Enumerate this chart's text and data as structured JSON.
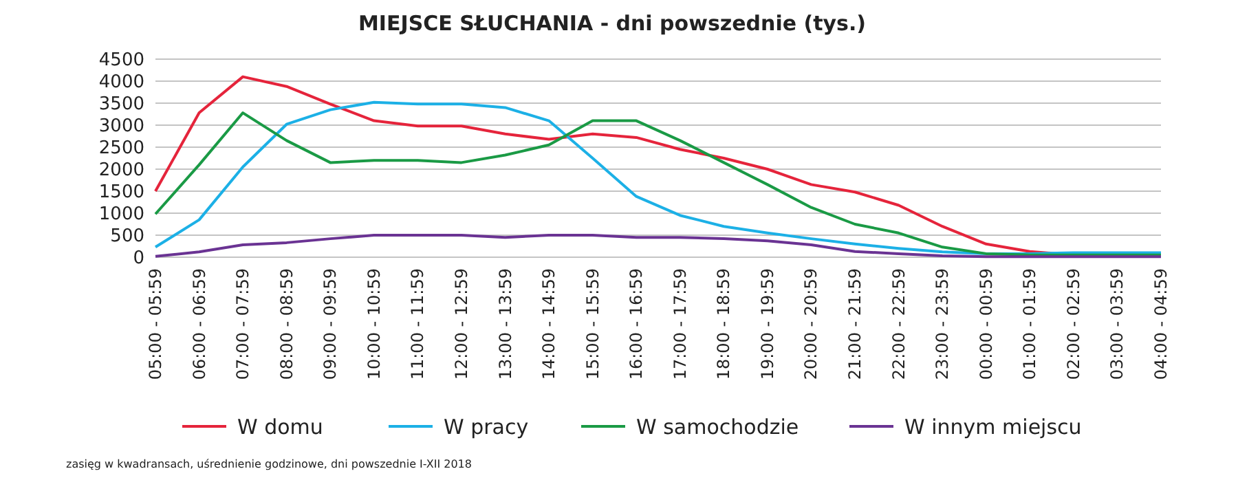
{
  "chart_data": {
    "type": "line",
    "title": "MIEJSCE SŁUCHANIA - dni powszednie (tys.)",
    "categories": [
      "05:00 - 05:59",
      "06:00 - 06:59",
      "07:00 - 07:59",
      "08:00 - 08:59",
      "09:00 - 09:59",
      "10:00 - 10:59",
      "11:00 - 11:59",
      "12:00 - 12:59",
      "13:00 - 13:59",
      "14:00 - 14:59",
      "15:00 - 15:59",
      "16:00 - 16:59",
      "17:00 - 17:59",
      "18:00 - 18:59",
      "19:00 - 19:59",
      "20:00 - 20:59",
      "21:00 - 21:59",
      "22:00 - 22:59",
      "23:00 - 23:59",
      "00:00 - 00:59",
      "01:00 - 01:59",
      "02:00 - 02:59",
      "03:00 - 03:59",
      "04:00 - 04:59"
    ],
    "series": [
      {
        "name": "W domu",
        "color": "#e5243b",
        "values": [
          1500,
          3280,
          4100,
          3880,
          3480,
          3100,
          2980,
          2980,
          2800,
          2680,
          2800,
          2720,
          2450,
          2250,
          2000,
          1650,
          1480,
          1180,
          700,
          300,
          130,
          50,
          null,
          null
        ]
      },
      {
        "name": "W pracy",
        "color": "#1cb0e6",
        "values": [
          230,
          850,
          2050,
          3020,
          3350,
          3520,
          3480,
          3480,
          3400,
          3100,
          2250,
          1380,
          950,
          700,
          550,
          420,
          300,
          200,
          120,
          80,
          80,
          100,
          100,
          100
        ]
      },
      {
        "name": "W samochodzie",
        "color": "#1a9a45",
        "values": [
          980,
          2100,
          3280,
          2650,
          2150,
          2200,
          2200,
          2150,
          2320,
          2550,
          3100,
          3100,
          2650,
          2150,
          1650,
          1130,
          750,
          550,
          230,
          80,
          50,
          50,
          50,
          50
        ]
      },
      {
        "name": "W innym miejscu",
        "color": "#6a3393",
        "values": [
          20,
          120,
          280,
          330,
          420,
          500,
          500,
          500,
          450,
          500,
          500,
          450,
          450,
          420,
          370,
          280,
          130,
          80,
          30,
          10,
          10,
          10,
          10,
          10
        ]
      }
    ],
    "ylim": [
      0,
      4500
    ],
    "yticks": [
      0,
      500,
      1000,
      1500,
      2000,
      2500,
      3000,
      3500,
      4000,
      4500
    ],
    "grid": "y",
    "legend": "bottom",
    "marker": "none",
    "line_style": "solid",
    "annotations": [
      "zasięg w kwadransach, uśrednienie godzinowe, dni powszednie I-XII 2018"
    ]
  }
}
